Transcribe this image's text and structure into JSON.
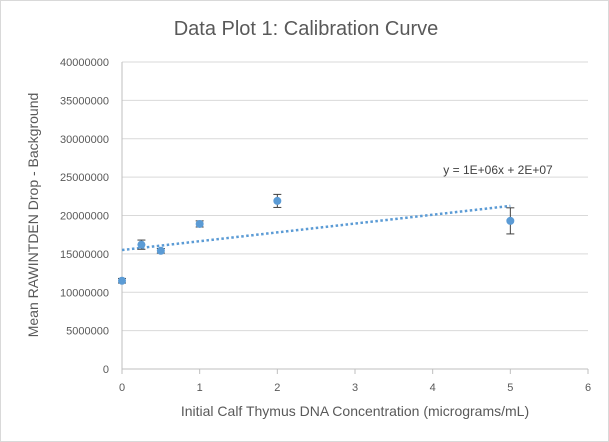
{
  "chart_data": {
    "type": "scatter",
    "title": "Data Plot 1: Calibration  Curve",
    "xlabel": "Initial Calf Thymus DNA Concentration (micrograms/mL)",
    "ylabel": "Mean RAWINTDEN Drop - Background",
    "xlim": [
      0,
      6
    ],
    "ylim": [
      0,
      40000000
    ],
    "x_ticks": [
      0,
      1,
      2,
      3,
      4,
      5,
      6
    ],
    "y_ticks": [
      0,
      5000000,
      10000000,
      15000000,
      20000000,
      25000000,
      30000000,
      35000000,
      40000000
    ],
    "x_tick_labels": [
      "0",
      "1",
      "2",
      "3",
      "4",
      "5",
      "6"
    ],
    "y_tick_labels": [
      "0",
      "5000000",
      "10000000",
      "15000000",
      "20000000",
      "25000000",
      "30000000",
      "35000000",
      "40000000"
    ],
    "grid": "horizontal",
    "series": [
      {
        "name": "Mean RAWINTDEN Drop - Background",
        "color": "#5b9bd5",
        "points": [
          {
            "x": 0,
            "y": 11500000,
            "err": 300000
          },
          {
            "x": 0.25,
            "y": 16200000,
            "err": 600000
          },
          {
            "x": 0.5,
            "y": 15400000,
            "err": 300000
          },
          {
            "x": 1,
            "y": 18900000,
            "err": 400000
          },
          {
            "x": 2,
            "y": 21900000,
            "err": 850000
          },
          {
            "x": 5,
            "y": 19300000,
            "err": 1700000
          }
        ]
      }
    ],
    "trendline": {
      "type": "linear",
      "color": "#5b9bd5",
      "x_range": [
        0,
        5
      ],
      "slope": 1150000,
      "intercept": 15500000,
      "equation_label": "y = 1E+06x  + 2E+07"
    }
  }
}
